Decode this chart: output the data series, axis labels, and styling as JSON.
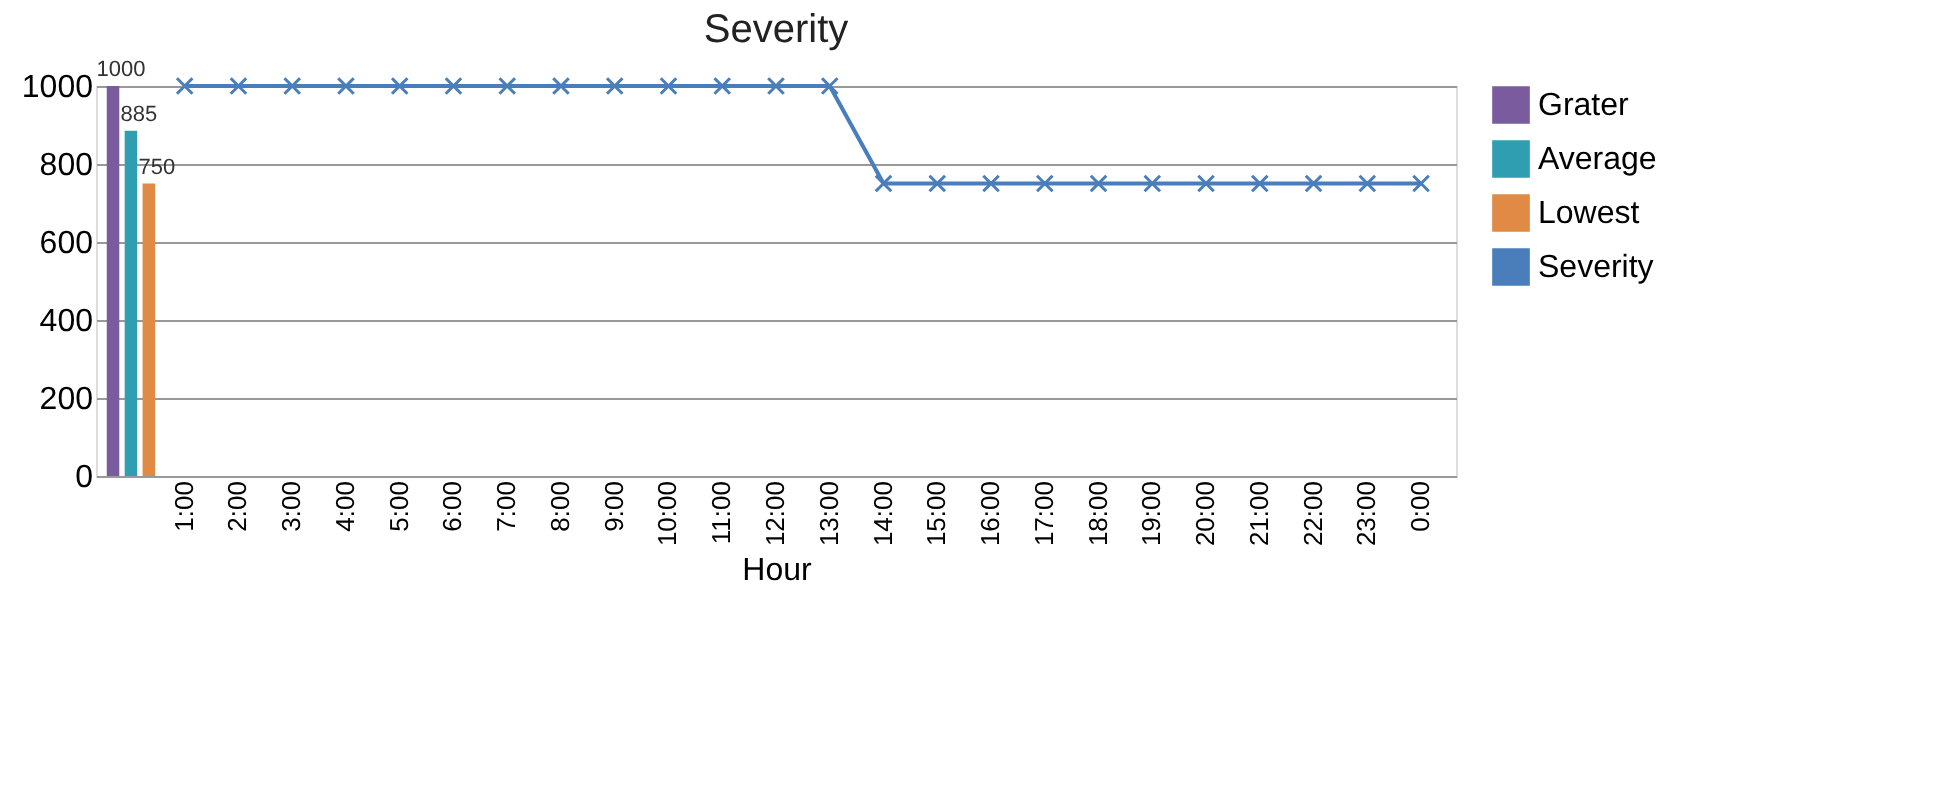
{
  "chart_data": {
    "type": "bar",
    "title": "Severity",
    "xlabel": "Hour",
    "categories": [
      null,
      "1:00",
      "2:00",
      "3:00",
      "4:00",
      "5:00",
      "6:00",
      "7:00",
      "8:00",
      "9:00",
      "10:00",
      "11:00",
      "12:00",
      "13:00",
      "14:00",
      "15:00",
      "16:00",
      "17:00",
      "18:00",
      "19:00",
      "20:00",
      "21:00",
      "22:00",
      "23:00",
      "0:00"
    ],
    "series": [
      {
        "name": "Grater",
        "color": "#7a5c9e",
        "values": [
          1000,
          null,
          null,
          null,
          null,
          null,
          null,
          null,
          null,
          null,
          null,
          null,
          null,
          null,
          null,
          null,
          null,
          null,
          null,
          null,
          null,
          null,
          null,
          null,
          null
        ],
        "value_labels": [
          "1000",
          null,
          null,
          null,
          null,
          null,
          null,
          null,
          null,
          null,
          null,
          null,
          null,
          null,
          null,
          null,
          null,
          null,
          null,
          null,
          null,
          null,
          null,
          null,
          null
        ]
      },
      {
        "name": "Average",
        "color": "#2e9eb0",
        "values": [
          885,
          null,
          null,
          null,
          null,
          null,
          null,
          null,
          null,
          null,
          null,
          null,
          null,
          null,
          null,
          null,
          null,
          null,
          null,
          null,
          null,
          null,
          null,
          null,
          null
        ],
        "value_labels": [
          "885",
          null,
          null,
          null,
          null,
          null,
          null,
          null,
          null,
          null,
          null,
          null,
          null,
          null,
          null,
          null,
          null,
          null,
          null,
          null,
          null,
          null,
          null,
          null,
          null
        ]
      },
      {
        "name": "Lowest",
        "color": "#e08a45",
        "values": [
          750,
          null,
          null,
          null,
          null,
          null,
          null,
          null,
          null,
          null,
          null,
          null,
          null,
          null,
          null,
          null,
          null,
          null,
          null,
          null,
          null,
          null,
          null,
          null,
          null
        ],
        "value_labels": [
          "750",
          null,
          null,
          null,
          null,
          null,
          null,
          null,
          null,
          null,
          null,
          null,
          null,
          null,
          null,
          null,
          null,
          null,
          null,
          null,
          null,
          null,
          null,
          null,
          null
        ]
      },
      {
        "name": "Severity",
        "type": "line",
        "color": "#4a7ebb",
        "marker": "cross",
        "values": [
          null,
          1000,
          1000,
          1000,
          1000,
          1000,
          1000,
          1000,
          1000,
          1000,
          1000,
          1000,
          1000,
          1000,
          750,
          750,
          750,
          750,
          750,
          750,
          750,
          750,
          750,
          750,
          750
        ]
      }
    ],
    "ylim": [
      0,
      1000
    ],
    "yticks": [
      0,
      200,
      400,
      600,
      800,
      1000
    ],
    "grid": "y",
    "legend": "right"
  }
}
